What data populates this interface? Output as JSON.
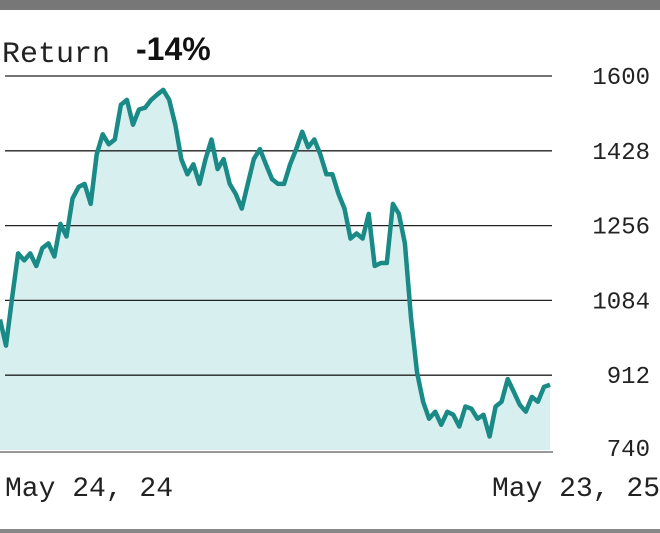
{
  "chart_data": {
    "type": "area",
    "title": "Return",
    "annotation": "-14%",
    "categories": [
      "May 24, 24",
      null,
      null,
      null,
      null,
      null,
      null,
      null,
      null,
      null,
      null,
      null,
      null,
      null,
      null,
      null,
      null,
      null,
      null,
      null,
      null,
      null,
      null,
      null,
      null,
      null,
      null,
      null,
      null,
      null,
      null,
      null,
      null,
      null,
      null,
      null,
      null,
      null,
      null,
      null,
      null,
      null,
      null,
      null,
      null,
      null,
      null,
      null,
      null,
      null,
      null,
      null,
      null,
      null,
      null,
      null,
      null,
      null,
      null,
      null,
      null,
      null,
      null,
      null,
      null,
      null,
      null,
      null,
      null,
      null,
      null,
      null,
      null,
      null,
      null,
      null,
      null,
      null,
      null,
      null,
      null,
      null,
      null,
      null,
      null,
      null,
      null,
      null,
      null,
      null,
      null,
      "May 23, 25"
    ],
    "values": [
      1040,
      980,
      1090,
      1192,
      1176,
      1192,
      1163,
      1204,
      1215,
      1185,
      1260,
      1231,
      1318,
      1345,
      1352,
      1306,
      1420,
      1466,
      1443,
      1454,
      1534,
      1545,
      1488,
      1523,
      1527,
      1545,
      1557,
      1568,
      1545,
      1488,
      1409,
      1374,
      1397,
      1352,
      1409,
      1454,
      1386,
      1409,
      1352,
      1329,
      1295,
      1352,
      1409,
      1432,
      1397,
      1363,
      1352,
      1352,
      1397,
      1432,
      1472,
      1436,
      1454,
      1420,
      1374,
      1374,
      1329,
      1295,
      1226,
      1238,
      1226,
      1283,
      1163,
      1170,
      1170,
      1306,
      1283,
      1215,
      1044,
      919,
      851,
      812,
      828,
      798,
      828,
      821,
      794,
      840,
      835,
      812,
      821,
      771,
      840,
      851,
      903,
      874,
      844,
      828,
      862,
      851,
      885,
      890
    ],
    "color": "#1a8a87",
    "fill_color": "#d8efef",
    "ylim": [
      740,
      1600
    ],
    "yticks": [
      740,
      912,
      1084,
      1256,
      1428,
      1600
    ],
    "grid": true
  }
}
